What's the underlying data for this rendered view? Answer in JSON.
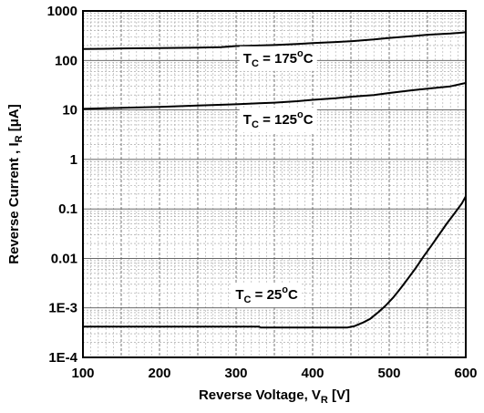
{
  "chart_data": {
    "type": "line",
    "title": "",
    "xlabel": {
      "main": "Reverse Voltage, V",
      "sub": "R",
      "unit": " [V]"
    },
    "ylabel": {
      "main": "Reverse Current , I",
      "sub": "R",
      "unit": " [μA]"
    },
    "x_scale": "linear",
    "y_scale": "log",
    "xlim": [
      100,
      600
    ],
    "ylim": [
      0.0001,
      1000
    ],
    "x_ticks": [
      100,
      200,
      300,
      400,
      500,
      600
    ],
    "x_tick_labels": [
      "100",
      "200",
      "300",
      "400",
      "500",
      "600"
    ],
    "y_ticks": [
      0.0001,
      0.001,
      0.01,
      0.1,
      1,
      10,
      100,
      1000
    ],
    "y_tick_labels": [
      "1E-4",
      "1E-3",
      "0.01",
      "0.1",
      "1",
      "10",
      "100",
      "1000"
    ],
    "grid": true,
    "legend": "none",
    "series": [
      {
        "values": [
          [
            100,
            170
          ],
          [
            130,
            172
          ],
          [
            150,
            175
          ],
          [
            200,
            178
          ],
          [
            250,
            182
          ],
          [
            280,
            185
          ],
          [
            300,
            195
          ],
          [
            330,
            200
          ],
          [
            350,
            205
          ],
          [
            380,
            215
          ],
          [
            400,
            225
          ],
          [
            430,
            235
          ],
          [
            450,
            245
          ],
          [
            480,
            265
          ],
          [
            500,
            285
          ],
          [
            530,
            310
          ],
          [
            550,
            330
          ],
          [
            580,
            350
          ],
          [
            600,
            370
          ]
        ]
      },
      {
        "values": [
          [
            100,
            10.5
          ],
          [
            150,
            11
          ],
          [
            200,
            11.5
          ],
          [
            250,
            12.3
          ],
          [
            300,
            13
          ],
          [
            330,
            13.6
          ],
          [
            350,
            14
          ],
          [
            380,
            15
          ],
          [
            400,
            16
          ],
          [
            430,
            17.2
          ],
          [
            450,
            18.5
          ],
          [
            480,
            20
          ],
          [
            500,
            22
          ],
          [
            530,
            25
          ],
          [
            550,
            27
          ],
          [
            580,
            30
          ],
          [
            600,
            35
          ]
        ]
      },
      {
        "values": [
          [
            100,
            0.00042
          ],
          [
            200,
            0.00042
          ],
          [
            300,
            0.00042
          ],
          [
            330,
            0.00042
          ],
          [
            332,
            0.0004
          ],
          [
            400,
            0.0004
          ],
          [
            445,
            0.0004
          ],
          [
            455,
            0.00043
          ],
          [
            465,
            0.0005
          ],
          [
            475,
            0.0006
          ],
          [
            485,
            0.0008
          ],
          [
            495,
            0.0011
          ],
          [
            505,
            0.0016
          ],
          [
            515,
            0.0025
          ],
          [
            525,
            0.004
          ],
          [
            535,
            0.0065
          ],
          [
            545,
            0.011
          ],
          [
            555,
            0.018
          ],
          [
            565,
            0.03
          ],
          [
            575,
            0.05
          ],
          [
            585,
            0.08
          ],
          [
            595,
            0.13
          ],
          [
            600,
            0.18
          ]
        ]
      }
    ],
    "annotations": [
      {
        "main": "T",
        "sub": "C",
        "value": " = 175",
        "deg": "o",
        "unit": "C",
        "x": 355,
        "y": 90
      },
      {
        "main": "T",
        "sub": "C",
        "value": " = 125",
        "deg": "o",
        "unit": "C",
        "x": 355,
        "y": 5.2
      },
      {
        "main": "T",
        "sub": "C",
        "value": " = 25",
        "deg": "o",
        "unit": "C",
        "x": 340,
        "y": 0.0015
      }
    ]
  }
}
